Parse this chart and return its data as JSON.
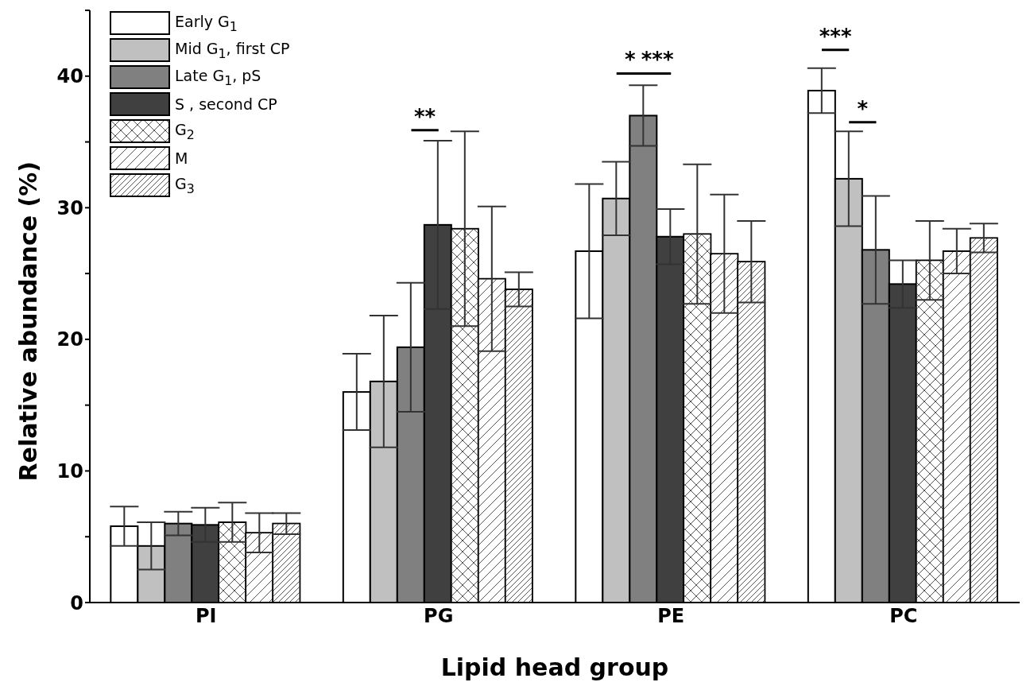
{
  "chart_data": {
    "type": "bar",
    "xlabel": "Lipid head group",
    "ylabel": "Relative abundance (%)",
    "categories": [
      "PI",
      "PG",
      "PE",
      "PC"
    ],
    "series": [
      {
        "name": "Early G$_{1}$",
        "color": "#ffffff",
        "values": [
          5.8,
          16.0,
          26.7,
          38.9
        ],
        "errors": [
          1.5,
          2.9,
          5.1,
          1.7
        ]
      },
      {
        "name": "Mid G$_{1}$, first CP",
        "color": "#c0c0c0",
        "values": [
          4.3,
          16.8,
          30.7,
          32.2
        ],
        "errors": [
          1.8,
          5.0,
          2.8,
          3.6
        ]
      },
      {
        "name": "Late G$_{1}$, pS",
        "color": "#808080",
        "values": [
          6.0,
          19.4,
          37.0,
          26.8
        ],
        "errors": [
          0.9,
          4.9,
          2.3,
          4.1
        ]
      },
      {
        "name": "S , second CP",
        "color": "#404040",
        "values": [
          5.9,
          28.7,
          27.8,
          24.2
        ],
        "errors": [
          1.3,
          6.4,
          2.1,
          1.8
        ]
      },
      {
        "name": "G$_{2}$",
        "color": "#ffffff",
        "values": [
          6.1,
          28.4,
          28.0,
          26.0
        ],
        "errors": [
          1.5,
          7.4,
          5.3,
          3.0
        ]
      },
      {
        "name": "M",
        "color": "#ffffff",
        "values": [
          5.3,
          24.6,
          26.5,
          26.7
        ],
        "errors": [
          1.5,
          5.5,
          4.5,
          1.7
        ]
      },
      {
        "name": "G$_{3}$",
        "color": "#ffffff",
        "values": [
          6.0,
          23.8,
          25.9,
          27.7
        ],
        "errors": [
          0.8,
          1.3,
          3.1,
          1.1
        ]
      }
    ],
    "ylim": [
      0,
      45
    ],
    "yticks": [
      0,
      {
        "value": 5,
        "label": null
      },
      10,
      {
        "value": 15,
        "label": null
      },
      20,
      {
        "value": 25,
        "label": null
      },
      30,
      {
        "value": 35,
        "label": null
      },
      40,
      {
        "value": 45,
        "label": null
      }
    ],
    "annotations": [
      "**",
      "*",
      "***",
      "***",
      "*"
    ],
    "legend": "top left",
    "grid": false
  }
}
